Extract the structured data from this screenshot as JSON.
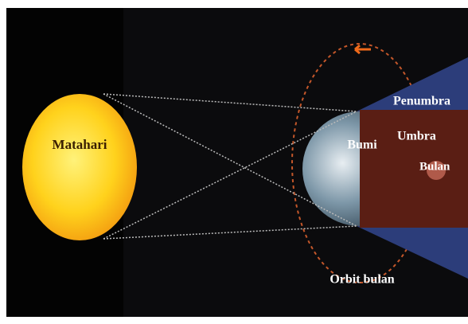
{
  "labels": {
    "sun": "Matahari",
    "penumbra": "Penumbra",
    "earth": "Bumi",
    "umbra": "Umbra",
    "moon": "Bulan",
    "orbit": "Orbit bulan"
  }
}
